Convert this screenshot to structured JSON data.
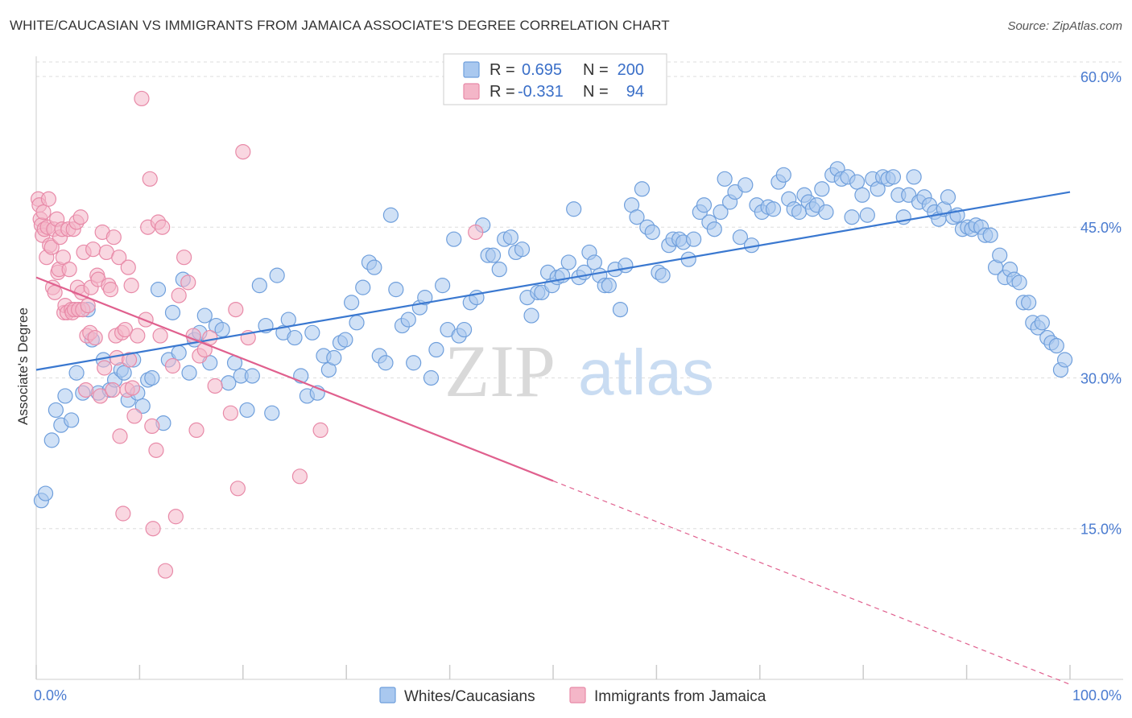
{
  "title": "WHITE/CAUCASIAN VS IMMIGRANTS FROM JAMAICA ASSOCIATE'S DEGREE CORRELATION CHART",
  "source": "Source: ZipAtlas.com",
  "watermark": {
    "zip": "ZIP",
    "atlas": "atlas"
  },
  "legend": {
    "r_label": "R =",
    "n_label": "N =",
    "series1": {
      "r": "0.695",
      "n": "200"
    },
    "series2": {
      "r": "-0.331",
      "n": "94"
    }
  },
  "colors": {
    "blue_fill": "#a9c8ef",
    "blue_stroke": "#6f9fdc",
    "blue_line": "#3a78d0",
    "pink_fill": "#f4b6c8",
    "pink_stroke": "#e88aa8",
    "pink_line": "#e0608e",
    "value_text": "#3a6fc8"
  },
  "chart_data": {
    "type": "scatter",
    "ylabel": "Associate's Degree",
    "xlim": [
      0,
      100
    ],
    "ylim": [
      0,
      62
    ],
    "x_tick_labels": [
      "0.0%",
      "100.0%"
    ],
    "y_ticks": [
      15,
      30,
      45,
      60
    ],
    "y_tick_labels": [
      "15.0%",
      "30.0%",
      "45.0%",
      "60.0%"
    ],
    "grid": true,
    "legend_position": "top-center",
    "series": [
      {
        "name": "Whites/Caucasians",
        "trend": {
          "x": [
            0,
            100
          ],
          "y": [
            30.8,
            48.5
          ],
          "dashed_from": null
        },
        "points": [
          [
            0.5,
            17.8
          ],
          [
            0.9,
            18.5
          ],
          [
            1.5,
            23.8
          ],
          [
            1.9,
            26.8
          ],
          [
            2.4,
            25.3
          ],
          [
            2.8,
            28.2
          ],
          [
            3.4,
            25.8
          ],
          [
            3.9,
            30.5
          ],
          [
            4.5,
            28.5
          ],
          [
            5.0,
            36.8
          ],
          [
            5.4,
            33.8
          ],
          [
            6.0,
            28.5
          ],
          [
            6.5,
            31.8
          ],
          [
            7.1,
            28.8
          ],
          [
            7.6,
            29.8
          ],
          [
            8.2,
            30.8
          ],
          [
            8.5,
            30.5
          ],
          [
            8.9,
            27.8
          ],
          [
            9.4,
            31.8
          ],
          [
            9.8,
            28.5
          ],
          [
            10.3,
            27.2
          ],
          [
            10.8,
            29.8
          ],
          [
            11.2,
            30.0
          ],
          [
            11.8,
            38.8
          ],
          [
            12.3,
            25.5
          ],
          [
            12.8,
            31.8
          ],
          [
            13.2,
            36.5
          ],
          [
            13.8,
            32.5
          ],
          [
            14.2,
            39.8
          ],
          [
            14.8,
            30.5
          ],
          [
            15.3,
            33.8
          ],
          [
            15.8,
            34.5
          ],
          [
            16.3,
            36.2
          ],
          [
            16.8,
            31.5
          ],
          [
            17.4,
            35.2
          ],
          [
            18.0,
            34.8
          ],
          [
            18.6,
            29.5
          ],
          [
            19.2,
            31.5
          ],
          [
            19.8,
            30.2
          ],
          [
            20.4,
            26.8
          ],
          [
            20.9,
            30.2
          ],
          [
            21.6,
            39.2
          ],
          [
            22.2,
            35.2
          ],
          [
            22.8,
            26.5
          ],
          [
            23.3,
            40.2
          ],
          [
            23.9,
            34.5
          ],
          [
            24.4,
            35.8
          ],
          [
            25.0,
            34.0
          ],
          [
            25.6,
            30.2
          ],
          [
            26.2,
            28.2
          ],
          [
            26.7,
            34.5
          ],
          [
            27.2,
            28.5
          ],
          [
            27.8,
            32.2
          ],
          [
            28.3,
            30.8
          ],
          [
            28.8,
            32.0
          ],
          [
            29.4,
            33.5
          ],
          [
            29.9,
            33.8
          ],
          [
            30.5,
            37.5
          ],
          [
            31.0,
            35.5
          ],
          [
            31.6,
            39.0
          ],
          [
            32.2,
            41.5
          ],
          [
            32.7,
            41.0
          ],
          [
            33.2,
            32.2
          ],
          [
            33.8,
            31.5
          ],
          [
            34.3,
            46.2
          ],
          [
            34.8,
            38.8
          ],
          [
            35.4,
            35.2
          ],
          [
            36.0,
            35.8
          ],
          [
            36.5,
            31.5
          ],
          [
            37.1,
            37.0
          ],
          [
            37.6,
            38.0
          ],
          [
            38.2,
            30.0
          ],
          [
            38.7,
            32.8
          ],
          [
            39.3,
            39.2
          ],
          [
            39.8,
            34.8
          ],
          [
            40.4,
            43.8
          ],
          [
            40.9,
            34.2
          ],
          [
            41.4,
            34.8
          ],
          [
            42.0,
            37.5
          ],
          [
            42.6,
            38.0
          ],
          [
            43.2,
            45.2
          ],
          [
            43.7,
            42.2
          ],
          [
            44.2,
            42.2
          ],
          [
            44.8,
            40.8
          ],
          [
            45.3,
            43.8
          ],
          [
            45.9,
            44.0
          ],
          [
            46.4,
            42.5
          ],
          [
            47.0,
            42.8
          ],
          [
            47.5,
            38.0
          ],
          [
            47.9,
            36.2
          ],
          [
            48.5,
            38.5
          ],
          [
            48.9,
            38.5
          ],
          [
            49.5,
            40.5
          ],
          [
            49.9,
            39.2
          ],
          [
            50.4,
            40.0
          ],
          [
            50.9,
            40.2
          ],
          [
            51.5,
            41.5
          ],
          [
            52.0,
            46.8
          ],
          [
            52.5,
            40.0
          ],
          [
            53.0,
            40.5
          ],
          [
            53.5,
            42.5
          ],
          [
            54.0,
            41.5
          ],
          [
            54.5,
            40.2
          ],
          [
            55.0,
            39.2
          ],
          [
            55.4,
            39.2
          ],
          [
            56.0,
            40.8
          ],
          [
            56.5,
            36.8
          ],
          [
            57.0,
            41.2
          ],
          [
            57.6,
            47.2
          ],
          [
            58.1,
            46.0
          ],
          [
            58.6,
            48.8
          ],
          [
            59.1,
            45.0
          ],
          [
            59.6,
            44.5
          ],
          [
            60.2,
            40.5
          ],
          [
            60.6,
            40.2
          ],
          [
            61.2,
            43.2
          ],
          [
            61.6,
            43.8
          ],
          [
            62.2,
            43.8
          ],
          [
            62.6,
            43.5
          ],
          [
            63.1,
            41.8
          ],
          [
            63.6,
            43.8
          ],
          [
            64.2,
            46.5
          ],
          [
            64.6,
            47.2
          ],
          [
            65.1,
            45.5
          ],
          [
            65.6,
            44.8
          ],
          [
            66.2,
            46.5
          ],
          [
            66.6,
            49.8
          ],
          [
            67.1,
            47.5
          ],
          [
            67.6,
            48.5
          ],
          [
            68.1,
            44.0
          ],
          [
            68.6,
            49.2
          ],
          [
            69.2,
            43.2
          ],
          [
            69.7,
            47.2
          ],
          [
            70.2,
            46.5
          ],
          [
            70.8,
            47.0
          ],
          [
            71.3,
            46.8
          ],
          [
            71.8,
            49.5
          ],
          [
            72.3,
            50.2
          ],
          [
            72.8,
            47.8
          ],
          [
            73.3,
            46.8
          ],
          [
            73.8,
            46.5
          ],
          [
            74.3,
            48.2
          ],
          [
            74.7,
            47.5
          ],
          [
            75.1,
            46.8
          ],
          [
            75.5,
            47.2
          ],
          [
            76.0,
            48.8
          ],
          [
            76.4,
            46.5
          ],
          [
            77.0,
            50.2
          ],
          [
            77.5,
            50.8
          ],
          [
            77.9,
            49.8
          ],
          [
            78.5,
            50.0
          ],
          [
            78.9,
            46.0
          ],
          [
            79.4,
            49.5
          ],
          [
            79.9,
            48.2
          ],
          [
            80.4,
            46.2
          ],
          [
            80.9,
            49.8
          ],
          [
            81.4,
            48.8
          ],
          [
            81.9,
            50.0
          ],
          [
            82.4,
            49.8
          ],
          [
            82.9,
            50.0
          ],
          [
            83.4,
            48.2
          ],
          [
            83.9,
            46.0
          ],
          [
            84.4,
            48.2
          ],
          [
            84.9,
            50.0
          ],
          [
            85.4,
            47.5
          ],
          [
            85.9,
            48.0
          ],
          [
            86.4,
            47.2
          ],
          [
            86.9,
            46.5
          ],
          [
            87.3,
            45.8
          ],
          [
            87.8,
            46.8
          ],
          [
            88.2,
            48.0
          ],
          [
            88.7,
            46.0
          ],
          [
            89.1,
            46.2
          ],
          [
            89.6,
            44.8
          ],
          [
            90.1,
            45.0
          ],
          [
            90.5,
            44.8
          ],
          [
            90.9,
            45.2
          ],
          [
            91.4,
            45.0
          ],
          [
            91.8,
            44.2
          ],
          [
            92.3,
            44.2
          ],
          [
            92.8,
            41.0
          ],
          [
            93.2,
            42.2
          ],
          [
            93.7,
            40.0
          ],
          [
            94.2,
            40.8
          ],
          [
            94.6,
            39.8
          ],
          [
            95.1,
            39.5
          ],
          [
            95.5,
            37.5
          ],
          [
            96.0,
            37.5
          ],
          [
            96.4,
            35.5
          ],
          [
            96.9,
            35.0
          ],
          [
            97.3,
            35.5
          ],
          [
            97.8,
            34.0
          ],
          [
            98.2,
            33.5
          ],
          [
            98.7,
            33.2
          ],
          [
            99.1,
            30.8
          ],
          [
            99.5,
            31.8
          ]
        ]
      },
      {
        "name": "Immigrants from Jamaica",
        "trend": {
          "x": [
            0,
            100
          ],
          "y": [
            40.0,
            -0.5
          ],
          "dashed_from": 50
        },
        "points": [
          [
            0.2,
            47.8
          ],
          [
            0.3,
            47.2
          ],
          [
            0.4,
            45.8
          ],
          [
            0.5,
            45.2
          ],
          [
            0.6,
            44.2
          ],
          [
            0.7,
            46.5
          ],
          [
            0.8,
            44.8
          ],
          [
            1.0,
            42.0
          ],
          [
            1.1,
            45.0
          ],
          [
            1.2,
            47.8
          ],
          [
            1.3,
            43.2
          ],
          [
            1.5,
            43.0
          ],
          [
            1.6,
            39.0
          ],
          [
            1.7,
            44.8
          ],
          [
            1.8,
            38.5
          ],
          [
            2.0,
            45.8
          ],
          [
            2.1,
            40.5
          ],
          [
            2.2,
            40.8
          ],
          [
            2.3,
            44.0
          ],
          [
            2.5,
            44.8
          ],
          [
            2.6,
            42.0
          ],
          [
            2.7,
            36.5
          ],
          [
            2.8,
            37.2
          ],
          [
            3.0,
            36.5
          ],
          [
            3.1,
            44.8
          ],
          [
            3.2,
            40.8
          ],
          [
            3.4,
            36.8
          ],
          [
            3.5,
            36.5
          ],
          [
            3.6,
            44.8
          ],
          [
            3.7,
            36.8
          ],
          [
            3.9,
            45.5
          ],
          [
            4.0,
            39.0
          ],
          [
            4.1,
            36.8
          ],
          [
            4.3,
            46.0
          ],
          [
            4.4,
            38.5
          ],
          [
            4.5,
            36.8
          ],
          [
            4.6,
            42.5
          ],
          [
            4.8,
            28.8
          ],
          [
            4.9,
            34.2
          ],
          [
            5.0,
            37.2
          ],
          [
            5.2,
            34.5
          ],
          [
            5.3,
            39.0
          ],
          [
            5.5,
            42.8
          ],
          [
            5.7,
            34.0
          ],
          [
            5.9,
            40.2
          ],
          [
            6.0,
            39.8
          ],
          [
            6.2,
            28.2
          ],
          [
            6.4,
            44.5
          ],
          [
            6.6,
            31.0
          ],
          [
            6.8,
            42.5
          ],
          [
            7.0,
            39.2
          ],
          [
            7.2,
            38.8
          ],
          [
            7.4,
            28.8
          ],
          [
            7.5,
            44.0
          ],
          [
            7.7,
            34.2
          ],
          [
            7.8,
            32.0
          ],
          [
            8.0,
            42.0
          ],
          [
            8.1,
            24.2
          ],
          [
            8.3,
            34.5
          ],
          [
            8.4,
            16.5
          ],
          [
            8.6,
            34.8
          ],
          [
            8.8,
            28.8
          ],
          [
            8.9,
            41.0
          ],
          [
            9.0,
            31.8
          ],
          [
            9.2,
            39.2
          ],
          [
            9.3,
            29.0
          ],
          [
            9.5,
            26.2
          ],
          [
            9.8,
            34.2
          ],
          [
            10.2,
            57.8
          ],
          [
            10.6,
            35.8
          ],
          [
            10.8,
            45.0
          ],
          [
            11.0,
            49.8
          ],
          [
            11.2,
            25.2
          ],
          [
            11.3,
            15.0
          ],
          [
            11.6,
            22.8
          ],
          [
            11.8,
            45.5
          ],
          [
            12.0,
            34.2
          ],
          [
            12.2,
            45.0
          ],
          [
            12.5,
            10.8
          ],
          [
            13.2,
            31.2
          ],
          [
            13.5,
            16.2
          ],
          [
            13.8,
            38.2
          ],
          [
            14.3,
            42.0
          ],
          [
            14.7,
            39.5
          ],
          [
            15.2,
            34.2
          ],
          [
            15.5,
            24.8
          ],
          [
            15.8,
            32.2
          ],
          [
            16.3,
            32.8
          ],
          [
            16.8,
            34.0
          ],
          [
            17.3,
            29.2
          ],
          [
            18.8,
            26.5
          ],
          [
            19.3,
            36.8
          ],
          [
            19.5,
            19.0
          ],
          [
            20.0,
            52.5
          ],
          [
            20.5,
            34.0
          ],
          [
            25.5,
            20.2
          ],
          [
            27.5,
            24.8
          ],
          [
            42.5,
            44.5
          ]
        ]
      }
    ]
  }
}
